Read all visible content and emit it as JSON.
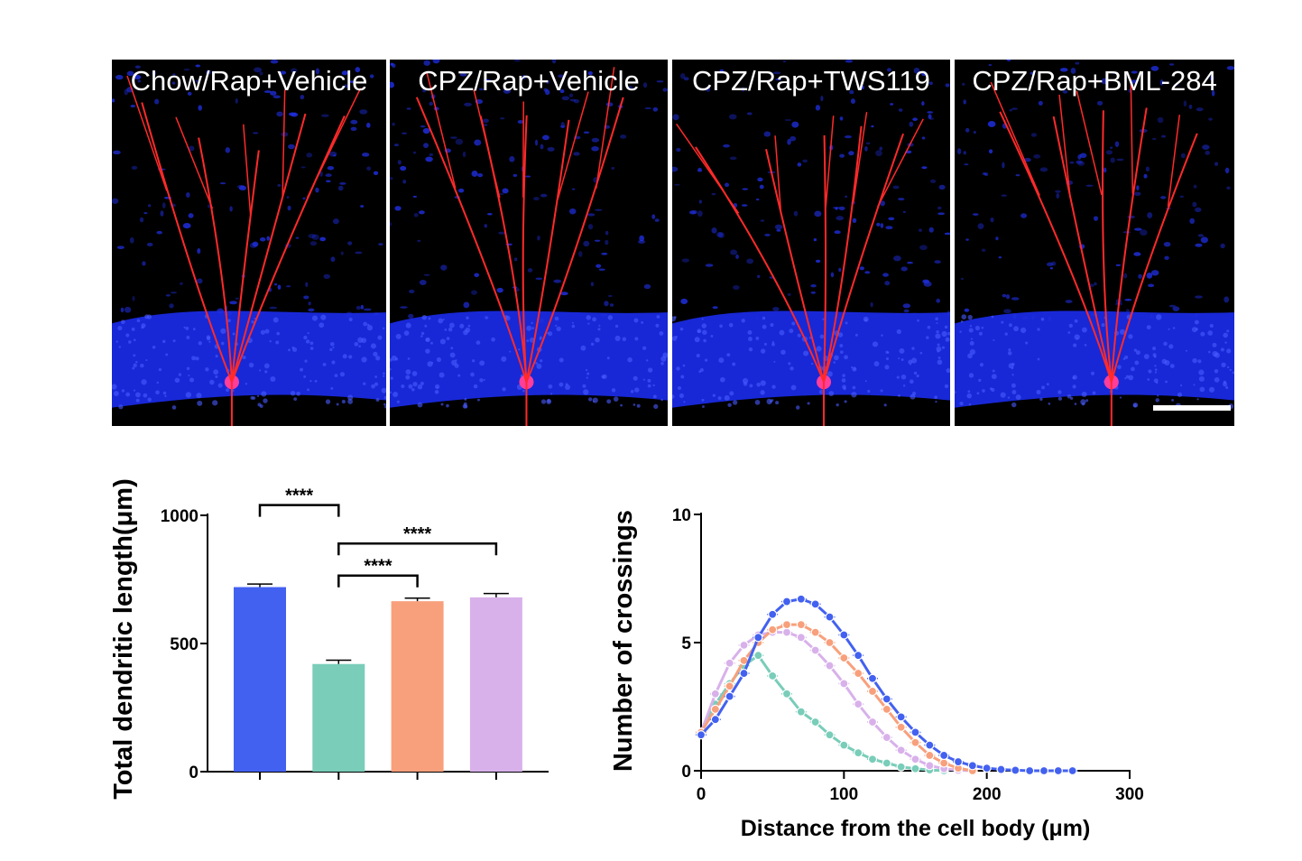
{
  "panels": [
    {
      "label": "Chow/Rap+Vehicle"
    },
    {
      "label": "CPZ/Rap+Vehicle"
    },
    {
      "label": "CPZ/Rap+TWS119"
    },
    {
      "label": "CPZ/Rap+BML-284"
    }
  ],
  "colors": {
    "blue": "#4361f0",
    "teal": "#79cdb9",
    "orange": "#f8a07c",
    "lilac": "#d8b1ea",
    "neuron": "#ff2a2a",
    "nuclei": "#1f2fe0"
  },
  "chart_data": [
    {
      "type": "bar",
      "categories": [
        "Chow/Rap+Vehicle",
        "CPZ/Rap+Vehicle",
        "CPZ/Rap+TWS119",
        "CPZ/Rap+BML-284"
      ],
      "values": [
        720,
        420,
        665,
        680
      ],
      "errors": [
        12,
        15,
        12,
        15
      ],
      "colors": [
        "#4361f0",
        "#79cdb9",
        "#f8a07c",
        "#d8b1ea"
      ],
      "ylabel": "Total dendritic length(μm)",
      "ylim": [
        0,
        1000
      ],
      "yticks": [
        "0",
        "500",
        "1000"
      ],
      "significance": [
        {
          "from": 0,
          "to": 1,
          "label": "****"
        },
        {
          "from": 1,
          "to": 3,
          "label": "****"
        },
        {
          "from": 1,
          "to": 2,
          "label": "****"
        }
      ]
    },
    {
      "type": "line",
      "xlabel": "Distance from the cell body (μm)",
      "ylabel": "Number of crossings",
      "xlim": [
        0,
        300
      ],
      "ylim": [
        0,
        10
      ],
      "xticks": [
        "0",
        "100",
        "200",
        "300"
      ],
      "yticks": [
        "0",
        "5",
        "10"
      ],
      "series": [
        {
          "color": "#79cdb9",
          "x": [
            0,
            10,
            20,
            30,
            40,
            50,
            60,
            70,
            80,
            90,
            100,
            110,
            120,
            130,
            140,
            150,
            160,
            170
          ],
          "y": [
            1.5,
            2.6,
            3.4,
            4.1,
            4.5,
            3.7,
            3.0,
            2.3,
            1.9,
            1.4,
            1.0,
            0.7,
            0.45,
            0.3,
            0.15,
            0.08,
            0.03,
            0.0
          ]
        },
        {
          "color": "#d8b1ea",
          "x": [
            0,
            10,
            20,
            30,
            40,
            50,
            60,
            70,
            80,
            90,
            100,
            110,
            120,
            130,
            140,
            150,
            160,
            170,
            180,
            190
          ],
          "y": [
            1.5,
            3.0,
            4.2,
            4.9,
            5.3,
            5.4,
            5.4,
            5.2,
            4.7,
            4.1,
            3.4,
            2.6,
            1.9,
            1.3,
            0.8,
            0.45,
            0.2,
            0.08,
            0.02,
            0.0
          ]
        },
        {
          "color": "#f8a07c",
          "x": [
            0,
            10,
            20,
            30,
            40,
            50,
            60,
            70,
            80,
            90,
            100,
            110,
            120,
            130,
            140,
            150,
            160,
            170,
            180,
            190
          ],
          "y": [
            1.5,
            2.4,
            3.3,
            4.3,
            5.0,
            5.5,
            5.7,
            5.7,
            5.4,
            5.0,
            4.4,
            3.8,
            3.1,
            2.4,
            1.7,
            1.1,
            0.6,
            0.3,
            0.1,
            0.0
          ]
        },
        {
          "color": "#4361f0",
          "x": [
            0,
            10,
            20,
            30,
            40,
            50,
            60,
            70,
            80,
            90,
            100,
            110,
            120,
            130,
            140,
            150,
            160,
            170,
            180,
            190,
            200,
            210,
            220,
            230,
            240,
            250,
            260
          ],
          "y": [
            1.4,
            2.0,
            2.9,
            3.8,
            5.2,
            6.1,
            6.6,
            6.7,
            6.5,
            6.0,
            5.3,
            4.5,
            3.6,
            2.8,
            2.1,
            1.5,
            1.0,
            0.6,
            0.35,
            0.2,
            0.1,
            0.05,
            0.02,
            0,
            0,
            0,
            0
          ]
        }
      ]
    }
  ]
}
